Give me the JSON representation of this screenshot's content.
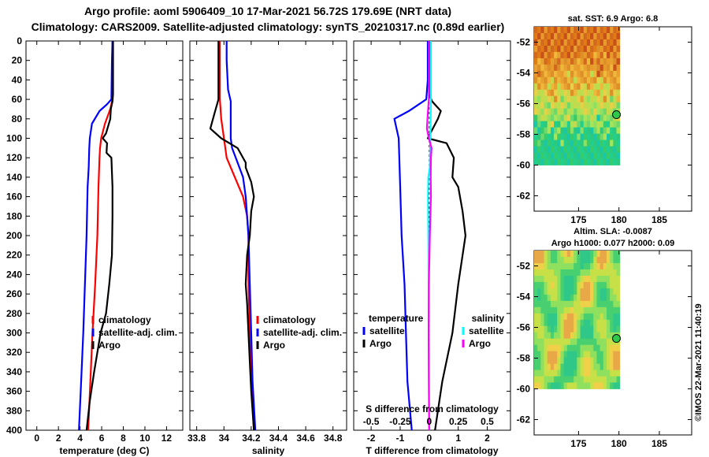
{
  "header": {
    "line1": "Argo profile: aoml 5906409_10 17-Mar-2021 56.72S 179.69E (NRT data)",
    "line2": "Climatology: CARS2009. Satellite-adjusted climatology: synTS_20210317.nc (0.89d earlier)"
  },
  "colors": {
    "climatology": "#ff0000",
    "satellite": "#0000ff",
    "argo": "#000000",
    "sal_satellite": "#00ffff",
    "sal_argo": "#ff00ff"
  },
  "chart_data": [
    {
      "type": "line",
      "id": "temperature",
      "xlabel": "temperature (deg C)",
      "xlim": [
        -1,
        13.5
      ],
      "xticks": [
        0,
        2,
        4,
        6,
        8,
        10,
        12
      ],
      "ylim": [
        0,
        400
      ],
      "yticks": [
        0,
        20,
        40,
        60,
        80,
        100,
        120,
        140,
        160,
        180,
        200,
        220,
        240,
        260,
        280,
        300,
        320,
        340,
        360,
        380,
        400
      ],
      "legend": [
        "climatology",
        "satellite-adj. clim.",
        "Argo"
      ],
      "series": [
        {
          "name": "climatology",
          "color": "#ff0000",
          "points": [
            [
              7.0,
              0
            ],
            [
              7.0,
              20
            ],
            [
              7.0,
              60
            ],
            [
              6.8,
              70
            ],
            [
              6.3,
              85
            ],
            [
              5.95,
              100
            ],
            [
              5.85,
              110
            ],
            [
              5.8,
              120
            ],
            [
              5.7,
              150
            ],
            [
              5.6,
              200
            ],
            [
              5.4,
              250
            ],
            [
              5.15,
              300
            ],
            [
              4.95,
              350
            ],
            [
              4.75,
              400
            ]
          ]
        },
        {
          "name": "satellite-adj. clim.",
          "color": "#0000ff",
          "points": [
            [
              7.0,
              0
            ],
            [
              6.95,
              20
            ],
            [
              6.9,
              60
            ],
            [
              6.5,
              65
            ],
            [
              5.8,
              72
            ],
            [
              5.1,
              85
            ],
            [
              4.9,
              100
            ],
            [
              4.85,
              110
            ],
            [
              4.8,
              130
            ],
            [
              4.7,
              150
            ],
            [
              4.6,
              200
            ],
            [
              4.45,
              250
            ],
            [
              4.3,
              300
            ],
            [
              4.1,
              350
            ],
            [
              3.9,
              400
            ]
          ]
        },
        {
          "name": "Argo",
          "color": "#000000",
          "points": [
            [
              7.05,
              0
            ],
            [
              7.05,
              20
            ],
            [
              7.05,
              55
            ],
            [
              7.0,
              62
            ],
            [
              6.85,
              70
            ],
            [
              6.8,
              80
            ],
            [
              6.4,
              95
            ],
            [
              6.1,
              100
            ],
            [
              6.5,
              105
            ],
            [
              6.45,
              115
            ],
            [
              6.9,
              120
            ],
            [
              6.95,
              135
            ],
            [
              7.0,
              150
            ],
            [
              7.0,
              180
            ],
            [
              6.95,
              220
            ],
            [
              6.7,
              250
            ],
            [
              6.4,
              280
            ],
            [
              5.9,
              300
            ],
            [
              5.6,
              320
            ],
            [
              5.3,
              340
            ],
            [
              4.9,
              370
            ],
            [
              4.6,
              400
            ]
          ]
        }
      ]
    },
    {
      "type": "line",
      "id": "salinity",
      "xlabel": "salinity",
      "xlim": [
        33.75,
        34.9
      ],
      "xticks": [
        33.8,
        34.0,
        34.2,
        34.4,
        34.6,
        34.8
      ],
      "xticklabels": [
        "33.8",
        "34",
        "34.2",
        "34.4",
        "34.6",
        "34.8"
      ],
      "ylim": [
        0,
        400
      ],
      "legend": [
        "climatology",
        "satellite-adj. clim.",
        "Argo"
      ],
      "series": [
        {
          "name": "climatology",
          "color": "#ff0000",
          "points": [
            [
              33.97,
              0
            ],
            [
              33.97,
              20
            ],
            [
              33.97,
              60
            ],
            [
              33.98,
              80
            ],
            [
              34.0,
              100
            ],
            [
              34.02,
              120
            ],
            [
              34.08,
              140
            ],
            [
              34.14,
              160
            ],
            [
              34.17,
              180
            ],
            [
              34.18,
              200
            ],
            [
              34.18,
              250
            ],
            [
              34.19,
              300
            ],
            [
              34.2,
              350
            ],
            [
              34.22,
              400
            ]
          ]
        },
        {
          "name": "satellite-adj. clim.",
          "color": "#0000ff",
          "points": [
            [
              34.02,
              0
            ],
            [
              34.02,
              20
            ],
            [
              34.03,
              50
            ],
            [
              34.05,
              62
            ],
            [
              34.05,
              85
            ],
            [
              34.05,
              100
            ],
            [
              34.06,
              110
            ],
            [
              34.1,
              125
            ],
            [
              34.14,
              140
            ],
            [
              34.16,
              160
            ],
            [
              34.18,
              200
            ],
            [
              34.19,
              250
            ],
            [
              34.2,
              300
            ],
            [
              34.21,
              350
            ],
            [
              34.23,
              400
            ]
          ]
        },
        {
          "name": "Argo",
          "color": "#000000",
          "points": [
            [
              33.96,
              0
            ],
            [
              33.96,
              20
            ],
            [
              33.96,
              60
            ],
            [
              33.93,
              75
            ],
            [
              33.9,
              90
            ],
            [
              33.98,
              100
            ],
            [
              34.1,
              110
            ],
            [
              34.12,
              115
            ],
            [
              34.16,
              125
            ],
            [
              34.16,
              130
            ],
            [
              34.2,
              145
            ],
            [
              34.22,
              160
            ],
            [
              34.2,
              175
            ],
            [
              34.19,
              200
            ],
            [
              34.17,
              220
            ],
            [
              34.16,
              250
            ],
            [
              34.17,
              270
            ],
            [
              34.18,
              300
            ],
            [
              34.19,
              330
            ],
            [
              34.2,
              360
            ],
            [
              34.22,
              400
            ]
          ]
        }
      ]
    },
    {
      "type": "line",
      "id": "difference",
      "xlabel": "T difference from climatology",
      "top_label": "S difference from climatology",
      "xlim": [
        -2.6,
        2.8
      ],
      "xticks": [
        -2,
        -1,
        0,
        1,
        2
      ],
      "top_ticks": [
        -0.5,
        -0.25,
        0,
        0.25,
        0.5
      ],
      "top_ticklabels": [
        "-0.5",
        "-0.25",
        "0",
        "0.25",
        "0.5"
      ],
      "ylim": [
        0,
        400
      ],
      "legend_temperature_title": "temperature",
      "legend_salinity_title": "salinity",
      "legend_satellite": "satellite",
      "legend_argo": "Argo",
      "series": [
        {
          "name": "T satellite",
          "color": "#0000ff",
          "points": [
            [
              -0.05,
              0
            ],
            [
              -0.05,
              40
            ],
            [
              -0.1,
              60
            ],
            [
              -0.7,
              72
            ],
            [
              -1.2,
              80
            ],
            [
              -1.05,
              100
            ],
            [
              -1.0,
              150
            ],
            [
              -0.95,
              200
            ],
            [
              -0.85,
              250
            ],
            [
              -0.8,
              300
            ],
            [
              -0.75,
              350
            ],
            [
              -0.6,
              400
            ]
          ]
        },
        {
          "name": "T Argo",
          "color": "#000000",
          "points": [
            [
              0,
              0
            ],
            [
              0,
              55
            ],
            [
              0.1,
              62
            ],
            [
              0.4,
              72
            ],
            [
              0.3,
              80
            ],
            [
              -0.05,
              100
            ],
            [
              0.6,
              105
            ],
            [
              0.85,
              120
            ],
            [
              0.8,
              140
            ],
            [
              1.0,
              150
            ],
            [
              1.15,
              175
            ],
            [
              1.25,
              200
            ],
            [
              1.0,
              250
            ],
            [
              0.8,
              300
            ],
            [
              0.45,
              350
            ],
            [
              0.2,
              400
            ]
          ]
        },
        {
          "name": "S satellite",
          "color": "#00ffff",
          "points": [
            [
              0.06,
              0
            ],
            [
              0.06,
              60
            ],
            [
              0.05,
              80
            ],
            [
              0.04,
              100
            ],
            [
              0.02,
              130
            ],
            [
              -0.03,
              140
            ],
            [
              -0.04,
              160
            ],
            [
              -0.03,
              200
            ],
            [
              -0.02,
              250
            ],
            [
              -0.02,
              300
            ],
            [
              -0.01,
              350
            ],
            [
              0.0,
              400
            ]
          ]
        },
        {
          "name": "S Argo",
          "color": "#ff00ff",
          "points": [
            [
              -0.01,
              0
            ],
            [
              -0.01,
              60
            ],
            [
              -0.05,
              75
            ],
            [
              -0.08,
              90
            ],
            [
              -0.01,
              100
            ],
            [
              0.08,
              110
            ],
            [
              0.06,
              120
            ],
            [
              0.05,
              140
            ],
            [
              0.06,
              160
            ],
            [
              0.02,
              200
            ],
            [
              -0.01,
              250
            ],
            [
              -0.02,
              300
            ],
            [
              -0.01,
              350
            ],
            [
              0.0,
              400
            ]
          ]
        }
      ]
    },
    {
      "type": "heatmap",
      "id": "sst_map",
      "title": "sat. SST: 6.9 Argo: 6.8",
      "xlim": [
        169.5,
        189
      ],
      "ylim": [
        -63,
        -51
      ],
      "xticks": [
        175,
        180,
        185
      ],
      "yticks": [
        -52,
        -54,
        -56,
        -58,
        -60,
        -62
      ],
      "data_extent": {
        "lon": [
          169.5,
          180.1
        ],
        "lat": [
          -60,
          -51
        ]
      },
      "argo_position": {
        "lon": 179.69,
        "lat": -56.72
      }
    },
    {
      "type": "heatmap",
      "id": "sla_map",
      "title": "Altim. SLA: -0.0087",
      "subtitle": "Argo h1000: 0.077 h2000: 0.09",
      "xlim": [
        169.5,
        189
      ],
      "ylim": [
        -63,
        -51
      ],
      "xticks": [
        175,
        180,
        185
      ],
      "yticks": [
        -52,
        -54,
        -56,
        -58,
        -60,
        -62
      ],
      "data_extent": {
        "lon": [
          169.5,
          180.1
        ],
        "lat": [
          -60,
          -51
        ]
      },
      "argo_position": {
        "lon": 179.69,
        "lat": -56.72
      }
    }
  ],
  "footer": {
    "stamp": "©IMOS 22-Mar-2021 11:40:19"
  }
}
